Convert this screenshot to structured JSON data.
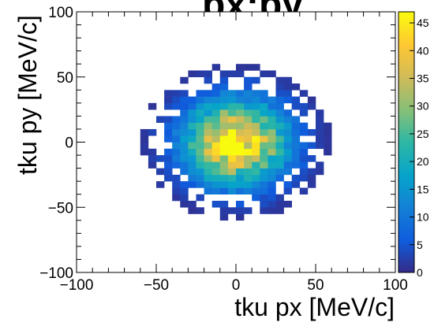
{
  "chart_data": {
    "type": "heatmap",
    "title": "px:py",
    "xlabel": "tku px [MeV/c]",
    "ylabel": "tku py [MeV/c]",
    "xlim": [
      -100,
      100
    ],
    "ylim": [
      -100,
      100
    ],
    "bin_width": 5,
    "x_ticks": [
      "−100",
      "−50",
      "0",
      "50",
      "100"
    ],
    "y_ticks": [
      "−100",
      "−50",
      "0",
      "50",
      "100"
    ],
    "colorbar": {
      "range": [
        0,
        47
      ],
      "ticks": [
        "0",
        "5",
        "10",
        "15",
        "20",
        "25",
        "30",
        "35",
        "40",
        "45"
      ],
      "colormap": [
        "#352a87",
        "#0f5cdd",
        "#1481d6",
        "#06a4ca",
        "#2eb7a4",
        "#87bf77",
        "#d1bb59",
        "#fec832",
        "#f9fb0e"
      ]
    },
    "distribution": {
      "shape": "2d-gaussian",
      "center": [
        0,
        0
      ],
      "sigma_px": 22,
      "sigma_py": 22,
      "peak_count": 46,
      "support_radius": 60
    },
    "grid": false,
    "legend": "colorbar-right"
  }
}
